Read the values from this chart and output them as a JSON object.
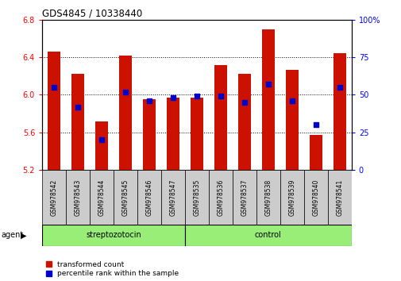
{
  "title": "GDS4845 / 10338440",
  "samples": [
    "GSM978542",
    "GSM978543",
    "GSM978544",
    "GSM978545",
    "GSM978546",
    "GSM978547",
    "GSM978535",
    "GSM978536",
    "GSM978537",
    "GSM978538",
    "GSM978539",
    "GSM978540",
    "GSM978541"
  ],
  "red_values": [
    6.46,
    6.22,
    5.72,
    6.42,
    5.95,
    5.97,
    5.97,
    6.32,
    6.22,
    6.7,
    6.27,
    5.57,
    6.44
  ],
  "blue_percentiles": [
    55,
    42,
    20,
    52,
    46,
    48,
    49,
    49,
    45,
    57,
    46,
    30,
    55
  ],
  "ymin": 5.2,
  "ymax": 6.8,
  "y2min": 0,
  "y2max": 100,
  "yticks": [
    5.2,
    5.6,
    6.0,
    6.4,
    6.8
  ],
  "y2ticks": [
    0,
    25,
    50,
    75,
    100
  ],
  "y2ticklabels": [
    "0",
    "25",
    "50",
    "75",
    "100%"
  ],
  "bar_color": "#CC1100",
  "dot_color": "#0000CC",
  "n_strep": 6,
  "n_ctrl": 7,
  "group_bg_color": "#99EE77",
  "xlabel_area_bg": "#CCCCCC",
  "label_transformed": "transformed count",
  "label_percentile": "percentile rank within the sample",
  "bar_bottom": 5.2,
  "bar_width": 0.55
}
